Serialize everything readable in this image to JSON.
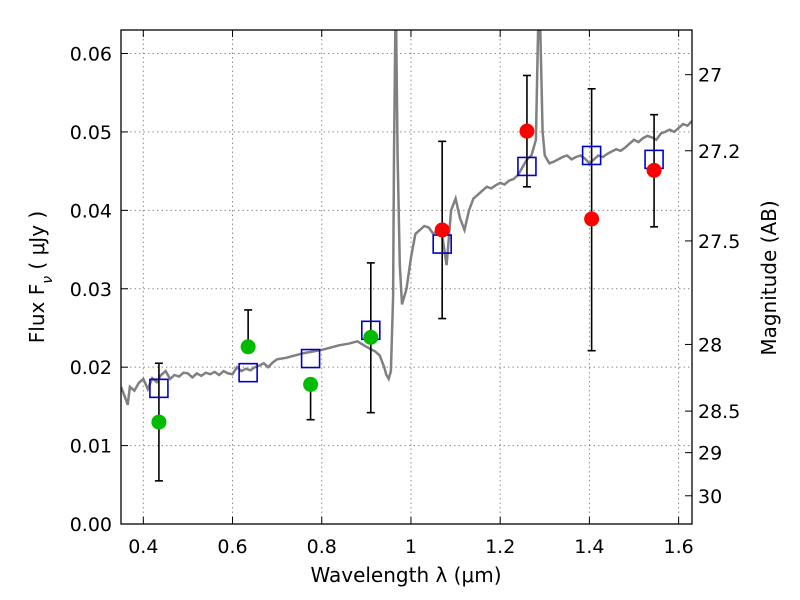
{
  "chart_data": {
    "type": "scatter",
    "xlabel": "Wavelength  λ (μm)",
    "ylabel": "Flux  F",
    "ylabel_sub": "ν",
    "ylabel_unit": "  ( μJy )",
    "y2label": "Magnitude (AB)",
    "xlim": [
      0.35,
      1.63
    ],
    "ylim": [
      0.0,
      0.063
    ],
    "grid": true,
    "x_ticks": [
      {
        "value": 0.4,
        "label": "0.4"
      },
      {
        "value": 0.6,
        "label": "0.6"
      },
      {
        "value": 0.8,
        "label": "0.8"
      },
      {
        "value": 1.0,
        "label": "1"
      },
      {
        "value": 1.2,
        "label": "1.2"
      },
      {
        "value": 1.4,
        "label": "1.4"
      },
      {
        "value": 1.6,
        "label": "1.6"
      }
    ],
    "y_ticks": [
      {
        "value": 0.0,
        "label": "0.00"
      },
      {
        "value": 0.01,
        "label": "0.01"
      },
      {
        "value": 0.02,
        "label": "0.02"
      },
      {
        "value": 0.03,
        "label": "0.03"
      },
      {
        "value": 0.04,
        "label": "0.04"
      },
      {
        "value": 0.05,
        "label": "0.05"
      },
      {
        "value": 0.06,
        "label": "0.06"
      }
    ],
    "y2_ticks": [
      {
        "flux": 0.0573,
        "label": "27"
      },
      {
        "flux": 0.0476,
        "label": "27.2"
      },
      {
        "flux": 0.0361,
        "label": "27.5"
      },
      {
        "flux": 0.0229,
        "label": "28"
      },
      {
        "flux": 0.0144,
        "label": "28.5"
      },
      {
        "flux": 0.0091,
        "label": "29"
      },
      {
        "flux": 0.0036,
        "label": "30"
      }
    ],
    "model_spectrum": {
      "color": "#808080",
      "x": [
        0.35,
        0.36,
        0.365,
        0.37,
        0.38,
        0.39,
        0.4,
        0.41,
        0.42,
        0.43,
        0.44,
        0.45,
        0.46,
        0.47,
        0.48,
        0.49,
        0.5,
        0.51,
        0.52,
        0.53,
        0.54,
        0.55,
        0.56,
        0.57,
        0.58,
        0.59,
        0.6,
        0.61,
        0.62,
        0.63,
        0.64,
        0.65,
        0.66,
        0.67,
        0.68,
        0.69,
        0.7,
        0.72,
        0.74,
        0.76,
        0.78,
        0.8,
        0.82,
        0.84,
        0.86,
        0.88,
        0.9,
        0.92,
        0.93,
        0.94,
        0.945,
        0.95,
        0.955,
        0.96,
        0.962,
        0.965,
        0.967,
        0.97,
        0.975,
        0.98,
        0.99,
        1.0,
        1.01,
        1.02,
        1.03,
        1.04,
        1.05,
        1.06,
        1.07,
        1.08,
        1.09,
        1.1,
        1.11,
        1.12,
        1.13,
        1.14,
        1.15,
        1.16,
        1.17,
        1.18,
        1.19,
        1.2,
        1.21,
        1.22,
        1.23,
        1.24,
        1.25,
        1.26,
        1.27,
        1.28,
        1.285,
        1.29,
        1.295,
        1.3,
        1.31,
        1.32,
        1.33,
        1.34,
        1.35,
        1.36,
        1.37,
        1.38,
        1.39,
        1.4,
        1.41,
        1.42,
        1.43,
        1.44,
        1.45,
        1.46,
        1.47,
        1.48,
        1.49,
        1.5,
        1.51,
        1.52,
        1.53,
        1.54,
        1.55,
        1.56,
        1.57,
        1.58,
        1.59,
        1.6,
        1.61,
        1.62,
        1.63
      ],
      "y": [
        0.0175,
        0.016,
        0.0152,
        0.0175,
        0.017,
        0.018,
        0.0185,
        0.0172,
        0.0186,
        0.0181,
        0.019,
        0.0195,
        0.0185,
        0.019,
        0.0188,
        0.0193,
        0.0192,
        0.0187,
        0.0192,
        0.0189,
        0.0193,
        0.0191,
        0.0194,
        0.019,
        0.0195,
        0.0192,
        0.0191,
        0.02,
        0.0195,
        0.0198,
        0.0196,
        0.02,
        0.0202,
        0.0205,
        0.02,
        0.0206,
        0.021,
        0.0212,
        0.0215,
        0.0218,
        0.022,
        0.0222,
        0.0225,
        0.0228,
        0.023,
        0.0233,
        0.0226,
        0.022,
        0.0215,
        0.02,
        0.019,
        0.0185,
        0.0195,
        0.029,
        0.047,
        0.063,
        0.063,
        0.047,
        0.033,
        0.028,
        0.03,
        0.034,
        0.037,
        0.0375,
        0.038,
        0.0378,
        0.037,
        0.0375,
        0.0368,
        0.033,
        0.04,
        0.0415,
        0.039,
        0.0375,
        0.04,
        0.0415,
        0.042,
        0.0425,
        0.043,
        0.0428,
        0.0432,
        0.0435,
        0.0433,
        0.0438,
        0.044,
        0.0445,
        0.0455,
        0.0465,
        0.047,
        0.049,
        0.063,
        0.063,
        0.05,
        0.047,
        0.046,
        0.0462,
        0.0465,
        0.0468,
        0.047,
        0.0465,
        0.0468,
        0.047,
        0.0466,
        0.046,
        0.0465,
        0.047,
        0.0468,
        0.0472,
        0.0475,
        0.0478,
        0.0476,
        0.048,
        0.0485,
        0.049,
        0.0487,
        0.0492,
        0.0495,
        0.0493,
        0.049,
        0.0498,
        0.05,
        0.0503,
        0.05,
        0.0505,
        0.051,
        0.0508,
        0.0514
      ]
    },
    "model_photometry": {
      "marker": "open-square",
      "color": "#0000cc",
      "points": [
        {
          "x": 0.435,
          "y": 0.0173
        },
        {
          "x": 0.635,
          "y": 0.0193
        },
        {
          "x": 0.775,
          "y": 0.0211
        },
        {
          "x": 0.91,
          "y": 0.0247
        },
        {
          "x": 1.07,
          "y": 0.0357
        },
        {
          "x": 1.26,
          "y": 0.0456
        },
        {
          "x": 1.405,
          "y": 0.047
        },
        {
          "x": 1.545,
          "y": 0.0465
        }
      ]
    },
    "observed_optical": {
      "marker": "filled-circle",
      "color": "#00bb00",
      "points": [
        {
          "x": 0.435,
          "y": 0.013,
          "ylo": 0.0055,
          "yhi": 0.0205
        },
        {
          "x": 0.635,
          "y": 0.0226,
          "ylo": null,
          "yhi": 0.0273
        },
        {
          "x": 0.775,
          "y": 0.0178,
          "ylo": 0.0133,
          "yhi": null
        },
        {
          "x": 0.91,
          "y": 0.0238,
          "ylo": 0.0142,
          "yhi": 0.0333
        }
      ]
    },
    "observed_nir": {
      "marker": "filled-circle",
      "color": "#ff0000",
      "points": [
        {
          "x": 1.07,
          "y": 0.0375,
          "ylo": 0.0262,
          "yhi": 0.0488
        },
        {
          "x": 1.26,
          "y": 0.0501,
          "ylo": 0.043,
          "yhi": 0.0572
        },
        {
          "x": 1.405,
          "y": 0.0389,
          "ylo": 0.0221,
          "yhi": 0.0555
        },
        {
          "x": 1.545,
          "y": 0.0451,
          "ylo": 0.0379,
          "yhi": 0.0522
        }
      ]
    }
  }
}
